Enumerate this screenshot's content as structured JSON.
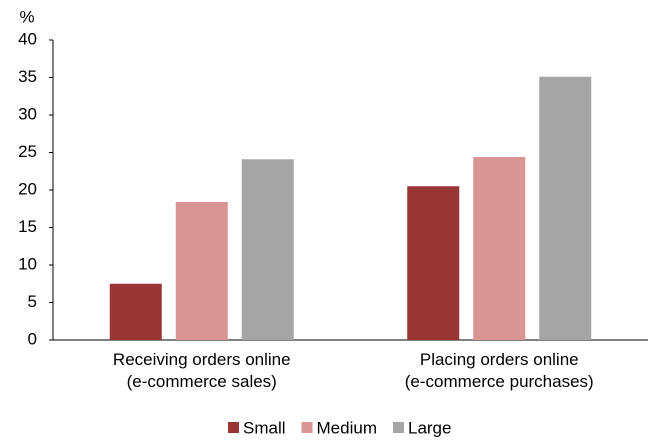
{
  "chart_data": {
    "type": "bar",
    "y_label": "%",
    "categories": [
      "Receiving orders online\n(e-commerce sales)",
      "Placing orders online\n(e-commerce purchases)"
    ],
    "series": [
      {
        "name": "Small",
        "color": "#993535",
        "values": [
          7.5,
          20.5
        ]
      },
      {
        "name": "Medium",
        "color": "#d99594",
        "values": [
          18.4,
          24.4
        ]
      },
      {
        "name": "Large",
        "color": "#a5a5a5",
        "values": [
          24.1,
          35.1
        ]
      }
    ],
    "ylim": [
      0,
      40
    ],
    "yticks": [
      0,
      5,
      10,
      15,
      20,
      25,
      30,
      35,
      40
    ],
    "grid": false,
    "legend": "bottom"
  }
}
